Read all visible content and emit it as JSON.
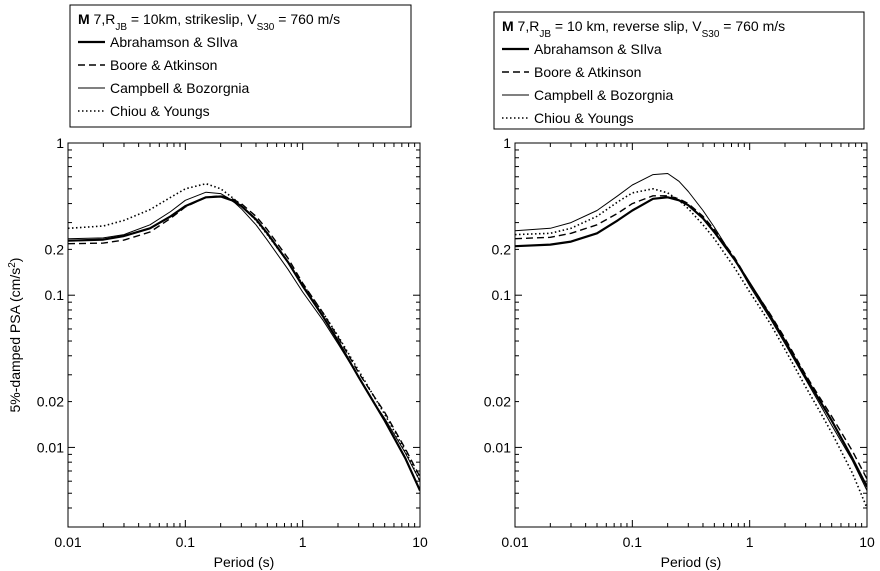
{
  "chart_data": [
    {
      "type": "line",
      "legend_title": {
        "magnitude": "7",
        "rjb": "10km",
        "mechanism": "strikeslip",
        "vs30": "760 m/s"
      },
      "xlabel": "Period (s)",
      "ylabel": "5%-damped PSA (cm/s²)",
      "xscale": "log",
      "yscale": "log",
      "xlim": [
        0.01,
        10
      ],
      "ylim": [
        0.003,
        1
      ],
      "xticks": [
        "0.01",
        "0.1",
        "1",
        "10"
      ],
      "yticks": [
        "0.01",
        "0.02",
        "0.1",
        "0.2",
        "1"
      ],
      "legend_position": "top-left, above plot",
      "series": [
        {
          "name": "Abrahamson & SIlva",
          "style": "thick-solid",
          "x": [
            0.01,
            0.02,
            0.03,
            0.05,
            0.075,
            0.1,
            0.15,
            0.2,
            0.25,
            0.3,
            0.4,
            0.5,
            0.75,
            1,
            1.5,
            2,
            3,
            4,
            5,
            7.5,
            10
          ],
          "y": [
            0.228,
            0.232,
            0.245,
            0.275,
            0.33,
            0.385,
            0.44,
            0.445,
            0.42,
            0.385,
            0.315,
            0.255,
            0.165,
            0.115,
            0.072,
            0.05,
            0.029,
            0.02,
            0.015,
            0.0085,
            0.0052
          ]
        },
        {
          "name": "Boore & Atkinson",
          "style": "dashed",
          "x": [
            0.01,
            0.02,
            0.03,
            0.05,
            0.075,
            0.1,
            0.15,
            0.2,
            0.25,
            0.3,
            0.4,
            0.5,
            0.75,
            1,
            1.5,
            2,
            3,
            4,
            5,
            7.5,
            10
          ],
          "y": [
            0.218,
            0.22,
            0.23,
            0.26,
            0.32,
            0.38,
            0.44,
            0.45,
            0.43,
            0.4,
            0.33,
            0.27,
            0.175,
            0.12,
            0.076,
            0.053,
            0.031,
            0.022,
            0.017,
            0.0098,
            0.0064
          ]
        },
        {
          "name": "Campbell & Bozorgnia",
          "style": "thin-solid",
          "x": [
            0.01,
            0.02,
            0.03,
            0.05,
            0.075,
            0.1,
            0.15,
            0.2,
            0.25,
            0.3,
            0.4,
            0.5,
            0.75,
            1,
            1.5,
            2,
            3,
            4,
            5,
            7.5,
            10
          ],
          "y": [
            0.235,
            0.238,
            0.25,
            0.29,
            0.355,
            0.42,
            0.475,
            0.465,
            0.42,
            0.37,
            0.29,
            0.23,
            0.148,
            0.105,
            0.068,
            0.048,
            0.029,
            0.02,
            0.0155,
            0.0092,
            0.006
          ]
        },
        {
          "name": "Chiou & Youngs",
          "style": "dotted",
          "x": [
            0.01,
            0.02,
            0.03,
            0.05,
            0.075,
            0.1,
            0.15,
            0.2,
            0.25,
            0.3,
            0.4,
            0.5,
            0.75,
            1,
            1.5,
            2,
            3,
            4,
            5,
            7.5,
            10
          ],
          "y": [
            0.275,
            0.285,
            0.31,
            0.365,
            0.44,
            0.5,
            0.54,
            0.5,
            0.44,
            0.39,
            0.31,
            0.25,
            0.165,
            0.118,
            0.076,
            0.054,
            0.032,
            0.022,
            0.0165,
            0.0095,
            0.006
          ]
        }
      ]
    },
    {
      "type": "line",
      "legend_title": {
        "magnitude": "7",
        "rjb": "10 km",
        "mechanism": "reverse slip",
        "vs30": "760 m/s"
      },
      "xlabel": "Period (s)",
      "ylabel": "",
      "xscale": "log",
      "yscale": "log",
      "xlim": [
        0.01,
        10
      ],
      "ylim": [
        0.003,
        1
      ],
      "xticks": [
        "0.01",
        "0.1",
        "1",
        "10"
      ],
      "yticks": [
        "0.01",
        "0.02",
        "0.1",
        "0.2",
        "1"
      ],
      "legend_position": "top-left, above plot",
      "series": [
        {
          "name": "Abrahamson & SIlva",
          "style": "thick-solid",
          "x": [
            0.01,
            0.02,
            0.03,
            0.05,
            0.075,
            0.1,
            0.15,
            0.2,
            0.25,
            0.3,
            0.4,
            0.5,
            0.75,
            1,
            1.5,
            2,
            3,
            4,
            5,
            7.5,
            10
          ],
          "y": [
            0.21,
            0.215,
            0.225,
            0.255,
            0.31,
            0.36,
            0.43,
            0.44,
            0.42,
            0.39,
            0.32,
            0.26,
            0.17,
            0.12,
            0.073,
            0.05,
            0.029,
            0.02,
            0.015,
            0.0085,
            0.0055
          ]
        },
        {
          "name": "Boore & Atkinson",
          "style": "dashed",
          "x": [
            0.01,
            0.02,
            0.03,
            0.05,
            0.075,
            0.1,
            0.15,
            0.2,
            0.25,
            0.3,
            0.4,
            0.5,
            0.75,
            1,
            1.5,
            2,
            3,
            4,
            5,
            7.5,
            10
          ],
          "y": [
            0.235,
            0.24,
            0.255,
            0.29,
            0.345,
            0.4,
            0.45,
            0.45,
            0.43,
            0.4,
            0.33,
            0.27,
            0.175,
            0.12,
            0.075,
            0.052,
            0.03,
            0.021,
            0.016,
            0.0095,
            0.0062
          ]
        },
        {
          "name": "Campbell & Bozorgnia",
          "style": "thin-solid",
          "x": [
            0.01,
            0.02,
            0.03,
            0.05,
            0.075,
            0.1,
            0.15,
            0.2,
            0.25,
            0.3,
            0.4,
            0.5,
            0.75,
            1,
            1.5,
            2,
            3,
            4,
            5,
            7.5,
            10
          ],
          "y": [
            0.265,
            0.275,
            0.3,
            0.36,
            0.45,
            0.53,
            0.62,
            0.63,
            0.56,
            0.48,
            0.36,
            0.28,
            0.17,
            0.115,
            0.07,
            0.048,
            0.028,
            0.019,
            0.014,
            0.0082,
            0.0052
          ]
        },
        {
          "name": "Chiou & Youngs",
          "style": "dotted",
          "x": [
            0.01,
            0.02,
            0.03,
            0.05,
            0.075,
            0.1,
            0.15,
            0.2,
            0.25,
            0.3,
            0.4,
            0.5,
            0.75,
            1,
            1.5,
            2,
            3,
            4,
            5,
            7.5,
            10
          ],
          "y": [
            0.25,
            0.255,
            0.275,
            0.33,
            0.41,
            0.47,
            0.5,
            0.47,
            0.42,
            0.37,
            0.29,
            0.235,
            0.15,
            0.105,
            0.065,
            0.044,
            0.025,
            0.017,
            0.0125,
            0.0068,
            0.004
          ]
        }
      ]
    }
  ]
}
